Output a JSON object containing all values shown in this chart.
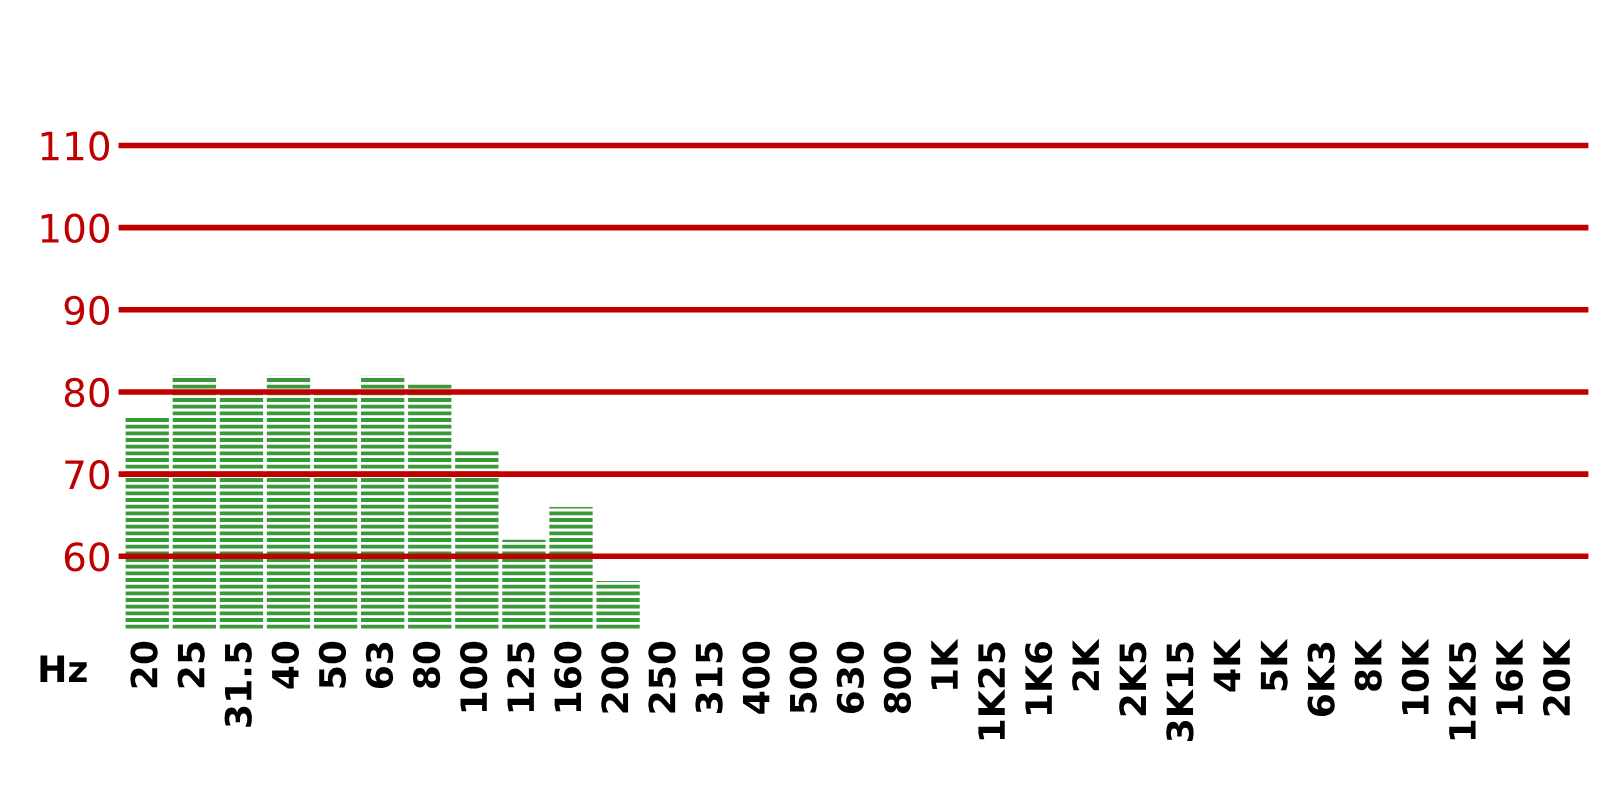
{
  "chart_data": {
    "type": "bar",
    "xlabel": "Hz",
    "categories": [
      "20",
      "25",
      "31.5",
      "40",
      "50",
      "63",
      "80",
      "100",
      "125",
      "160",
      "200",
      "250",
      "315",
      "400",
      "500",
      "630",
      "800",
      "1K",
      "1K25",
      "1K6",
      "2K",
      "2K5",
      "3K15",
      "4K",
      "5K",
      "6K3",
      "8K",
      "10K",
      "12K5",
      "16K",
      "20K"
    ],
    "values": [
      77,
      82,
      80,
      82,
      80,
      82,
      81,
      73,
      62,
      66,
      57,
      null,
      null,
      null,
      null,
      null,
      null,
      null,
      null,
      null,
      null,
      null,
      null,
      null,
      null,
      null,
      null,
      null,
      null,
      null,
      null
    ],
    "color": "#3a9a3a",
    "ylim": [
      51,
      110
    ],
    "yticks": [
      60,
      70,
      80,
      90,
      100,
      110
    ],
    "grid": "y"
  }
}
